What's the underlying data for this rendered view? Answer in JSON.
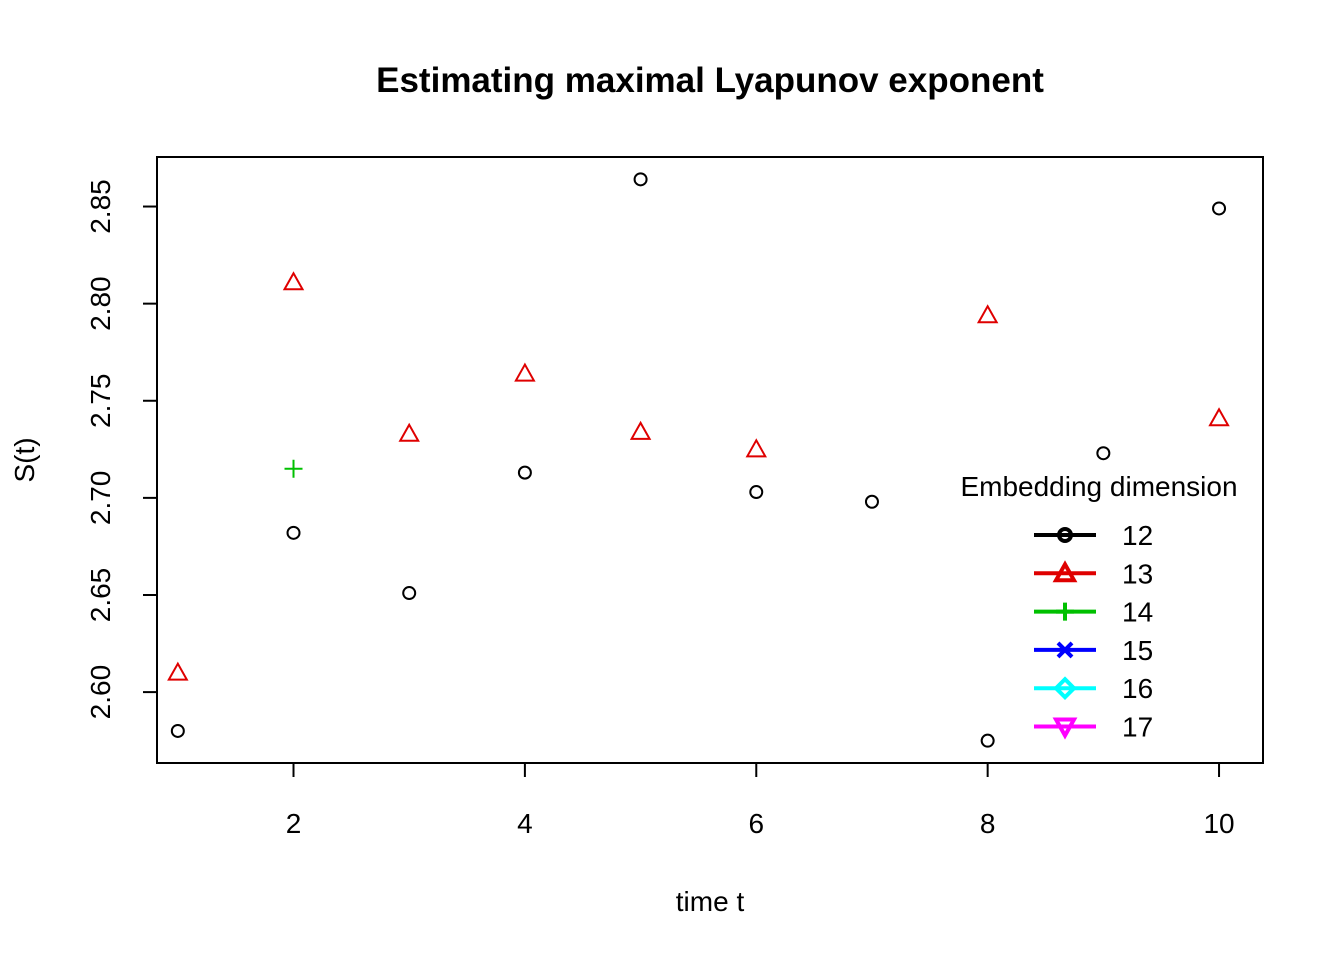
{
  "chart_data": {
    "type": "scatter",
    "title": "Estimating maximal Lyapunov exponent",
    "xlabel": "time t",
    "ylabel": "S(t)",
    "xlim": [
      0.82,
      10.38
    ],
    "ylim": [
      2.5635,
      2.8755
    ],
    "x_ticks": [
      2,
      4,
      6,
      8,
      10
    ],
    "y_ticks": [
      2.6,
      2.65,
      2.7,
      2.75,
      2.8,
      2.85
    ],
    "x_tick_labels": [
      "2",
      "4",
      "6",
      "8",
      "10"
    ],
    "y_tick_labels": [
      "2.60",
      "2.65",
      "2.70",
      "2.75",
      "2.80",
      "2.85"
    ],
    "grid": false,
    "legend": {
      "title": "Embedding dimension",
      "position": "right",
      "entries": [
        {
          "label": "12",
          "color": "#000000",
          "symbol": "circle"
        },
        {
          "label": "13",
          "color": "#DF0000",
          "symbol": "triangle-up"
        },
        {
          "label": "14",
          "color": "#00C000",
          "symbol": "plus"
        },
        {
          "label": "15",
          "color": "#0000FF",
          "symbol": "x"
        },
        {
          "label": "16",
          "color": "#00FFFF",
          "symbol": "diamond"
        },
        {
          "label": "17",
          "color": "#FF00FF",
          "symbol": "triangle-down"
        }
      ]
    },
    "series": [
      {
        "name": "12",
        "color": "#000000",
        "symbol": "circle",
        "points": [
          {
            "x": 1,
            "y": 2.58
          },
          {
            "x": 2,
            "y": 2.682
          },
          {
            "x": 3,
            "y": 2.651
          },
          {
            "x": 4,
            "y": 2.713
          },
          {
            "x": 5,
            "y": 2.864
          },
          {
            "x": 6,
            "y": 2.703
          },
          {
            "x": 7,
            "y": 2.698
          },
          {
            "x": 8,
            "y": 2.575
          },
          {
            "x": 9,
            "y": 2.723
          },
          {
            "x": 10,
            "y": 2.849
          }
        ]
      },
      {
        "name": "13",
        "color": "#DF0000",
        "symbol": "triangle-up",
        "points": [
          {
            "x": 1,
            "y": 2.61
          },
          {
            "x": 2,
            "y": 2.811
          },
          {
            "x": 3,
            "y": 2.733
          },
          {
            "x": 4,
            "y": 2.764
          },
          {
            "x": 5,
            "y": 2.734
          },
          {
            "x": 6,
            "y": 2.725
          },
          {
            "x": 8,
            "y": 2.794
          },
          {
            "x": 10,
            "y": 2.741
          }
        ]
      },
      {
        "name": "14",
        "color": "#00C000",
        "symbol": "plus",
        "points": [
          {
            "x": 2,
            "y": 2.715
          }
        ]
      }
    ]
  }
}
